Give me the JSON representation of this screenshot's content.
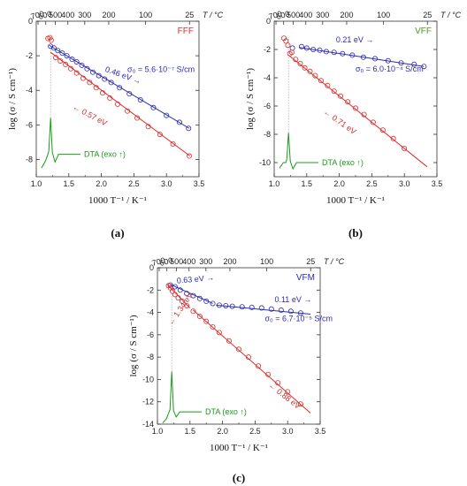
{
  "chart_data": [
    {
      "type": "scatter",
      "panel_label": "(a)",
      "sample": "FFF",
      "xlabel": "1000 T⁻¹ / K⁻¹",
      "ylabel": "log (σ / S cm⁻¹)",
      "top_axis_label": "T / °C",
      "xlim": [
        1.0,
        3.5
      ],
      "ylim": [
        -9,
        0
      ],
      "x_ticks": [
        "1.0",
        "1.5",
        "2.0",
        "2.5",
        "3.0",
        "3.5"
      ],
      "y_ticks": [
        "0",
        "-2",
        "-4",
        "-6",
        "-8"
      ],
      "top_ticks": [
        {
          "label": "700",
          "value": 700
        },
        {
          "label": "600",
          "value": 600
        },
        {
          "label": "500",
          "value": 500
        },
        {
          "label": "400",
          "value": 400
        },
        {
          "label": "300",
          "value": 300
        },
        {
          "label": "200",
          "value": 200
        },
        {
          "label": "100",
          "value": 100
        },
        {
          "label": "25",
          "value": 25
        }
      ],
      "series": [
        {
          "color": "#2a2ab0",
          "fit": [
            [
              1.2,
              -1.4
            ],
            [
              3.35,
              -6.2
            ]
          ],
          "points": [
            [
              1.22,
              -1.45
            ],
            [
              1.27,
              -1.55
            ],
            [
              1.33,
              -1.7
            ],
            [
              1.4,
              -1.85
            ],
            [
              1.47,
              -2.0
            ],
            [
              1.55,
              -2.2
            ],
            [
              1.62,
              -2.35
            ],
            [
              1.7,
              -2.55
            ],
            [
              1.78,
              -2.75
            ],
            [
              1.87,
              -2.95
            ],
            [
              1.96,
              -3.15
            ],
            [
              2.05,
              -3.35
            ],
            [
              2.15,
              -3.55
            ],
            [
              2.28,
              -3.85
            ],
            [
              2.43,
              -4.2
            ],
            [
              2.6,
              -4.55
            ],
            [
              2.8,
              -5.0
            ],
            [
              3.0,
              -5.45
            ],
            [
              3.2,
              -5.85
            ],
            [
              3.34,
              -6.2
            ]
          ]
        },
        {
          "color": "#dd2a2a",
          "fit": [
            [
              1.22,
              -1.8
            ],
            [
              3.36,
              -7.8
            ]
          ],
          "points": [
            [
              1.18,
              -1.0
            ],
            [
              1.21,
              -0.95
            ],
            [
              1.23,
              -1.1
            ],
            [
              1.3,
              -2.1
            ],
            [
              1.37,
              -2.3
            ],
            [
              1.45,
              -2.5
            ],
            [
              1.53,
              -2.75
            ],
            [
              1.62,
              -3.0
            ],
            [
              1.72,
              -3.3
            ],
            [
              1.82,
              -3.55
            ],
            [
              1.92,
              -3.85
            ],
            [
              2.02,
              -4.15
            ],
            [
              2.13,
              -4.45
            ],
            [
              2.25,
              -4.8
            ],
            [
              2.4,
              -5.2
            ],
            [
              2.55,
              -5.6
            ],
            [
              2.72,
              -6.1
            ],
            [
              2.9,
              -6.55
            ],
            [
              3.1,
              -7.1
            ],
            [
              3.35,
              -7.8
            ]
          ]
        }
      ],
      "annotations": [
        {
          "text": "0.46 eV →",
          "color": "#2a2ab0",
          "x": 2.05,
          "y": -2.9,
          "rotate": 20
        },
        {
          "text": "σ₀ = 5.6·10⁻⁷ S/cm",
          "color": "#2a2ab0",
          "x": 2.4,
          "y": -2.95,
          "rotate": 0
        },
        {
          "text": "← 0.57 eV",
          "color": "#dd2a2a",
          "x": 1.55,
          "y": -5.05,
          "rotate": 28
        }
      ],
      "dta": {
        "label": "DTA (exo ↑)",
        "x_peak": 1.22,
        "y_base": -7.7,
        "y_peak": -5.6,
        "y_start": -8.5
      }
    },
    {
      "type": "scatter",
      "panel_label": "(b)",
      "sample": "VFF",
      "xlabel": "1000 T⁻¹ / K⁻¹",
      "ylabel": "log (σ / S cm⁻¹)",
      "top_axis_label": "T / °C",
      "xlim": [
        1.0,
        3.5
      ],
      "ylim": [
        -11,
        0
      ],
      "x_ticks": [
        "1.0",
        "1.5",
        "2.0",
        "2.5",
        "3.0",
        "3.5"
      ],
      "y_ticks": [
        "0",
        "-2",
        "-4",
        "-6",
        "-8",
        "-10"
      ],
      "top_ticks": [
        {
          "label": "700",
          "value": 700
        },
        {
          "label": "600",
          "value": 600
        },
        {
          "label": "500",
          "value": 500
        },
        {
          "label": "400",
          "value": 400
        },
        {
          "label": "300",
          "value": 300
        },
        {
          "label": "200",
          "value": 200
        },
        {
          "label": "100",
          "value": 100
        },
        {
          "label": "25",
          "value": 25
        }
      ],
      "series": [
        {
          "color": "#2a2ab0",
          "fit": [
            [
              1.38,
              -1.85
            ],
            [
              3.3,
              -3.2
            ]
          ],
          "points": [
            [
              1.28,
              -1.9
            ],
            [
              1.42,
              -1.8
            ],
            [
              1.5,
              -1.9
            ],
            [
              1.6,
              -2.0
            ],
            [
              1.7,
              -2.05
            ],
            [
              1.8,
              -2.15
            ],
            [
              1.92,
              -2.2
            ],
            [
              2.05,
              -2.3
            ],
            [
              2.2,
              -2.4
            ],
            [
              2.37,
              -2.55
            ],
            [
              2.55,
              -2.65
            ],
            [
              2.75,
              -2.8
            ],
            [
              2.95,
              -2.95
            ],
            [
              3.15,
              -3.05
            ],
            [
              3.3,
              -3.2
            ]
          ]
        },
        {
          "color": "#dd2a2a",
          "fit": [
            [
              1.22,
              -2.4
            ],
            [
              3.35,
              -10.3
            ]
          ],
          "points": [
            [
              1.15,
              -1.2
            ],
            [
              1.18,
              -1.4
            ],
            [
              1.21,
              -1.7
            ],
            [
              1.24,
              -2.3
            ],
            [
              1.27,
              -2.2
            ],
            [
              1.33,
              -2.7
            ],
            [
              1.4,
              -3.0
            ],
            [
              1.47,
              -3.3
            ],
            [
              1.55,
              -3.55
            ],
            [
              1.63,
              -3.85
            ],
            [
              1.72,
              -4.2
            ],
            [
              1.82,
              -4.55
            ],
            [
              1.92,
              -4.95
            ],
            [
              2.02,
              -5.3
            ],
            [
              2.13,
              -5.7
            ],
            [
              2.25,
              -6.15
            ],
            [
              2.38,
              -6.6
            ],
            [
              2.52,
              -7.15
            ],
            [
              2.67,
              -7.7
            ],
            [
              2.83,
              -8.3
            ],
            [
              3.0,
              -9.0
            ]
          ]
        }
      ],
      "annotations": [
        {
          "text": "0.21 eV →",
          "color": "#2a2ab0",
          "x": 1.95,
          "y": -1.5,
          "rotate": 0
        },
        {
          "text": "σ₀ = 6.0·10⁻⁴ S/cm",
          "color": "#2a2ab0",
          "x": 2.25,
          "y": -3.55,
          "rotate": 0
        },
        {
          "text": "← 0.71 eV",
          "color": "#dd2a2a",
          "x": 1.75,
          "y": -6.5,
          "rotate": 35
        }
      ],
      "dta": {
        "label": "DTA (exo ↑)",
        "x_peak": 1.22,
        "y_base": -10.0,
        "y_peak": -7.9,
        "y_start": -10.4
      }
    },
    {
      "type": "scatter",
      "panel_label": "(c)",
      "sample": "VFM",
      "xlabel": "1000 T⁻¹ / K⁻¹",
      "ylabel": "log (σ / S cm⁻¹)",
      "top_axis_label": "T / °C",
      "xlim": [
        1.0,
        3.5
      ],
      "ylim": [
        -14,
        0
      ],
      "x_ticks": [
        "1.0",
        "1.5",
        "2.0",
        "2.5",
        "3.0",
        "3.5"
      ],
      "y_ticks": [
        "0",
        "-2",
        "-4",
        "-6",
        "-8",
        "-10",
        "-12",
        "-14"
      ],
      "top_ticks": [
        {
          "label": "700",
          "value": 700
        },
        {
          "label": "600",
          "value": 600
        },
        {
          "label": "500",
          "value": 500
        },
        {
          "label": "400",
          "value": 400
        },
        {
          "label": "300",
          "value": 300
        },
        {
          "label": "200",
          "value": 200
        },
        {
          "label": "100",
          "value": 100
        },
        {
          "label": "25",
          "value": 25
        }
      ],
      "series": [
        {
          "color": "#2a2ab0",
          "fit": [
            [
              1.2,
              -1.5
            ],
            [
              1.85,
              -3.2
            ]
          ],
          "points": [
            [
              1.2,
              -1.55
            ],
            [
              1.27,
              -1.7
            ],
            [
              1.35,
              -2.0
            ],
            [
              1.45,
              -2.3
            ],
            [
              1.55,
              -2.5
            ],
            [
              1.65,
              -2.75
            ],
            [
              1.75,
              -3.0
            ],
            [
              1.85,
              -3.2
            ],
            [
              1.95,
              -3.35
            ],
            [
              2.05,
              -3.4
            ],
            [
              2.15,
              -3.45
            ],
            [
              2.3,
              -3.5
            ],
            [
              2.45,
              -3.55
            ],
            [
              2.6,
              -3.6
            ],
            [
              2.75,
              -3.7
            ],
            [
              2.9,
              -3.8
            ],
            [
              3.05,
              -3.9
            ],
            [
              3.2,
              -4.05
            ]
          ]
        },
        {
          "color": "#2a2ab0",
          "fit": [
            [
              1.9,
              -3.35
            ],
            [
              3.35,
              -4.15
            ]
          ],
          "points": []
        },
        {
          "color": "#dd2a2a",
          "fit": [
            [
              1.15,
              -1.5
            ],
            [
              1.5,
              -3.6
            ]
          ],
          "points": [
            [
              1.17,
              -1.6
            ],
            [
              1.2,
              -1.8
            ],
            [
              1.23,
              -2.1
            ],
            [
              1.27,
              -2.4
            ],
            [
              1.32,
              -2.7
            ],
            [
              1.38,
              -3.0
            ],
            [
              1.45,
              -3.4
            ],
            [
              1.55,
              -3.9
            ],
            [
              1.65,
              -4.35
            ],
            [
              1.75,
              -4.8
            ],
            [
              1.85,
              -5.3
            ],
            [
              1.95,
              -5.8
            ],
            [
              2.1,
              -6.55
            ],
            [
              2.25,
              -7.3
            ],
            [
              2.4,
              -8.0
            ],
            [
              2.55,
              -8.8
            ],
            [
              2.7,
              -9.55
            ],
            [
              2.85,
              -10.3
            ],
            [
              3.0,
              -11.1
            ],
            [
              3.2,
              -12.2
            ]
          ]
        },
        {
          "color": "#dd2a2a",
          "fit": [
            [
              1.55,
              -3.8
            ],
            [
              3.35,
              -13.0
            ]
          ],
          "points": []
        }
      ],
      "annotations": [
        {
          "text": "0.63 eV →",
          "color": "#2a2ab0",
          "x": 1.3,
          "y": -1.4,
          "rotate": -5
        },
        {
          "text": "0.11 eV →",
          "color": "#2a2ab0",
          "x": 2.8,
          "y": -3.1,
          "rotate": 0
        },
        {
          "text": "σ₀ = 6.7·10⁻⁵ S/cm",
          "color": "#2a2ab0",
          "x": 2.65,
          "y": -4.8,
          "rotate": 0
        },
        {
          "text": "← 1.34 eV",
          "color": "#dd2a2a",
          "x": 1.22,
          "y": -5.2,
          "rotate": -55
        },
        {
          "text": "← 0.88 eV",
          "color": "#dd2a2a",
          "x": 2.7,
          "y": -10.6,
          "rotate": 38
        }
      ],
      "dta": {
        "label": "DTA (exo ↑)",
        "x_peak": 1.22,
        "y_base": -12.9,
        "y_peak": -9.3,
        "y_start": -13.9
      }
    }
  ]
}
